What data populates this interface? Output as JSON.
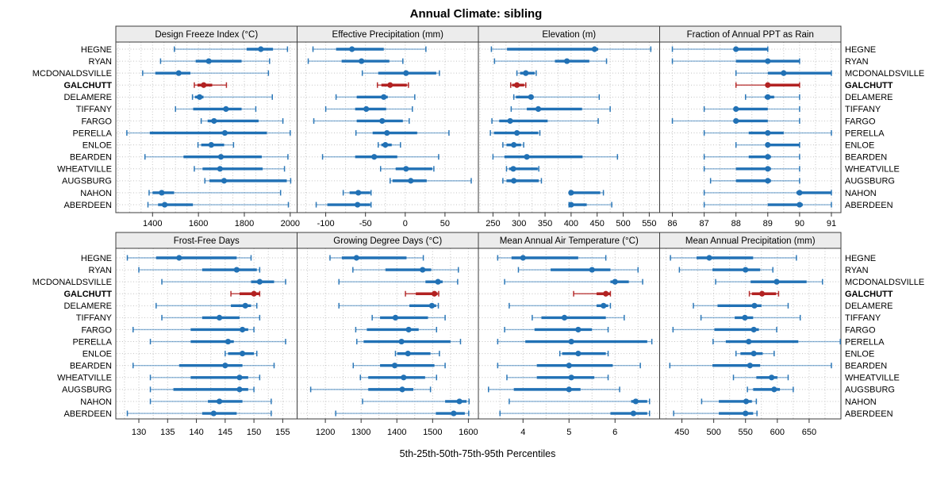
{
  "title": "Annual Climate: sibling",
  "caption": "5th-25th-50th-75th-95th Percentiles",
  "highlight_station": "GALCHUTT",
  "stations": [
    "HEGNE",
    "RYAN",
    "MCDONALDSVILLE",
    "GALCHUTT",
    "DELAMERE",
    "TIFFANY",
    "FARGO",
    "PERELLA",
    "ENLOE",
    "BEARDEN",
    "WHEATVILLE",
    "AUGSBURG",
    "NAHON",
    "ABERDEEN"
  ],
  "colors": {
    "primary": "#2171b5",
    "highlight": "#b22222",
    "strip_bg": "#ececec",
    "panel_border": "#3c3c3c",
    "grid": "#c3c3c3",
    "tick": "#333333"
  },
  "chart_data": {
    "type": "scatter",
    "variant": "percentile-dot-whisker",
    "percentile_labels": [
      "p5",
      "p25",
      "p50",
      "p75",
      "p95"
    ],
    "legend_position": "none",
    "grid": "dotted",
    "xlabel": "5th-25th-50th-75th-95th Percentiles",
    "categories": [
      "HEGNE",
      "RYAN",
      "MCDONALDSVILLE",
      "GALCHUTT",
      "DELAMERE",
      "TIFFANY",
      "FARGO",
      "PERELLA",
      "ENLOE",
      "BEARDEN",
      "WHEATVILLE",
      "AUGSBURG",
      "NAHON",
      "ABERDEEN"
    ],
    "panels": [
      {
        "title": "Design Freeze Index (°C)",
        "xlim": [
          1240,
          2030
        ],
        "ticks": [
          1400,
          1600,
          1800,
          2000
        ],
        "minor_step": 50,
        "values": [
          [
            1495,
            1810,
            1872,
            1925,
            1988
          ],
          [
            1435,
            1588,
            1645,
            1788,
            1910
          ],
          [
            1357,
            1412,
            1514,
            1565,
            1905
          ],
          [
            1582,
            1596,
            1623,
            1660,
            1722
          ],
          [
            1574,
            1585,
            1605,
            1622,
            1922
          ],
          [
            1500,
            1577,
            1720,
            1788,
            1850
          ],
          [
            1612,
            1640,
            1668,
            1862,
            1968
          ],
          [
            1288,
            1388,
            1715,
            1898,
            2000
          ],
          [
            1598,
            1612,
            1656,
            1712,
            1753
          ],
          [
            1367,
            1535,
            1698,
            1876,
            1990
          ],
          [
            1582,
            1618,
            1694,
            1880,
            1975
          ],
          [
            1628,
            1648,
            1712,
            1985,
            2002
          ],
          [
            1385,
            1400,
            1440,
            1494,
            1958
          ],
          [
            1380,
            1424,
            1453,
            1576,
            1992
          ]
        ]
      },
      {
        "title": "Effective Precipitation (mm)",
        "xlim": [
          -136,
          92
        ],
        "ticks": [
          -100,
          -50,
          0,
          50
        ],
        "minor_step": 25,
        "values": [
          [
            -116,
            -87,
            -67,
            -27,
            26
          ],
          [
            -122,
            -80,
            -55,
            -20,
            -3
          ],
          [
            -54,
            -34,
            1,
            39,
            43
          ],
          [
            -35,
            -30,
            -19,
            2,
            4
          ],
          [
            -87,
            -61,
            -27,
            -22,
            12
          ],
          [
            -100,
            -63,
            -49,
            -24,
            9
          ],
          [
            -115,
            -61,
            -29,
            -3,
            5
          ],
          [
            -62,
            -41,
            -23,
            15,
            55
          ],
          [
            -34,
            -30,
            -25,
            -17,
            -6
          ],
          [
            -104,
            -63,
            -39,
            -10,
            42
          ],
          [
            -31,
            -12,
            1,
            34,
            36
          ],
          [
            -19,
            -16,
            7,
            27,
            83
          ],
          [
            -78,
            -70,
            -59,
            -44,
            -43
          ],
          [
            -112,
            -98,
            -60,
            -44,
            -43
          ]
        ]
      },
      {
        "title": "Elevation (m)",
        "xlim": [
          222,
          570
        ],
        "ticks": [
          250,
          300,
          350,
          400,
          450,
          500,
          550
        ],
        "minor_step": 25,
        "values": [
          [
            247,
            277,
            445,
            452,
            553
          ],
          [
            253,
            369,
            392,
            435,
            468
          ],
          [
            296,
            302,
            313,
            330,
            333
          ],
          [
            284,
            287,
            296,
            310,
            313
          ],
          [
            290,
            294,
            323,
            328,
            454
          ],
          [
            285,
            315,
            337,
            421,
            475
          ],
          [
            248,
            262,
            283,
            355,
            452
          ],
          [
            245,
            252,
            296,
            337,
            340
          ],
          [
            269,
            276,
            290,
            304,
            309
          ],
          [
            250,
            272,
            315,
            422,
            489
          ],
          [
            276,
            281,
            289,
            336,
            338
          ],
          [
            269,
            276,
            290,
            338,
            343
          ],
          [
            398,
            400,
            400,
            456,
            462
          ],
          [
            396,
            398,
            400,
            430,
            478
          ]
        ]
      },
      {
        "title": "Fraction of Annual PPT as Rain",
        "xlim": [
          85.6,
          91.3
        ],
        "ticks": [
          86,
          87,
          88,
          89,
          90,
          91
        ],
        "minor_step": 0.5,
        "values": [
          [
            86,
            88,
            88,
            89,
            89
          ],
          [
            86,
            88,
            89,
            90,
            90
          ],
          [
            88,
            89,
            89.5,
            91,
            91
          ],
          [
            88,
            89,
            89,
            90,
            90
          ],
          [
            88.3,
            88.9,
            89,
            89.2,
            90
          ],
          [
            87,
            88,
            88,
            89,
            90
          ],
          [
            86,
            88,
            88,
            89,
            90
          ],
          [
            87,
            88.4,
            89,
            89.5,
            91
          ],
          [
            88,
            89,
            89,
            90,
            90
          ],
          [
            87,
            88.4,
            89,
            89.1,
            90
          ],
          [
            87,
            88,
            89,
            89.1,
            90
          ],
          [
            87.2,
            88,
            89,
            89.1,
            90
          ],
          [
            87,
            89.9,
            90,
            91,
            91
          ],
          [
            87,
            89,
            90,
            90.1,
            91
          ]
        ]
      },
      {
        "title": "Frost-Free Days",
        "xlim": [
          126,
          157.5
        ],
        "ticks": [
          130,
          135,
          140,
          145,
          150,
          155
        ],
        "minor_step": 2.5,
        "values": [
          [
            128,
            133,
            137,
            147,
            149.5
          ],
          [
            130,
            141,
            147,
            150.5,
            151
          ],
          [
            134,
            149.5,
            151,
            153.5,
            155.5
          ],
          [
            146,
            147.5,
            150,
            151,
            151
          ],
          [
            133,
            146,
            148.5,
            149.5,
            150.5
          ],
          [
            134,
            141,
            144,
            147.5,
            151
          ],
          [
            129,
            139,
            148,
            149,
            150
          ],
          [
            132,
            139,
            145.5,
            146.5,
            155.5
          ],
          [
            145,
            145.5,
            148,
            150,
            150.5
          ],
          [
            129,
            137,
            145,
            148,
            153.5
          ],
          [
            132,
            139,
            147.5,
            149,
            151
          ],
          [
            132,
            136,
            147.5,
            149,
            150
          ],
          [
            132,
            142,
            144,
            148,
            153
          ],
          [
            128,
            141,
            143,
            147,
            153
          ]
        ]
      },
      {
        "title": "Growing Degree Days (°C)",
        "xlim": [
          1121,
          1628
        ],
        "ticks": [
          1200,
          1300,
          1400,
          1500,
          1600
        ],
        "minor_step": 50,
        "values": [
          [
            1213,
            1246,
            1287,
            1427,
            1474
          ],
          [
            1277,
            1368,
            1472,
            1496,
            1572
          ],
          [
            1238,
            1480,
            1515,
            1528,
            1570
          ],
          [
            1424,
            1453,
            1505,
            1514,
            1517
          ],
          [
            1238,
            1435,
            1498,
            1510,
            1516
          ],
          [
            1331,
            1353,
            1396,
            1487,
            1535
          ],
          [
            1285,
            1316,
            1433,
            1461,
            1511
          ],
          [
            1288,
            1307,
            1413,
            1550,
            1578
          ],
          [
            1396,
            1401,
            1431,
            1494,
            1519
          ],
          [
            1278,
            1353,
            1394,
            1505,
            1535
          ],
          [
            1298,
            1320,
            1419,
            1479,
            1511
          ],
          [
            1159,
            1320,
            1415,
            1446,
            1494
          ],
          [
            1304,
            1535,
            1575,
            1595,
            1602
          ],
          [
            1229,
            1509,
            1559,
            1590,
            1601
          ]
        ]
      },
      {
        "title": "Mean Annual Air Temperature (°C)",
        "xlim": [
          3.03,
          6.97
        ],
        "ticks": [
          4,
          5,
          6
        ],
        "minor_step": 0.5,
        "values": [
          [
            3.45,
            3.75,
            4.0,
            5.2,
            5.8
          ],
          [
            3.9,
            4.6,
            5.5,
            5.9,
            6.5
          ],
          [
            3.6,
            5.9,
            6.0,
            6.3,
            6.6
          ],
          [
            5.1,
            5.6,
            5.8,
            5.9,
            5.9
          ],
          [
            3.7,
            5.6,
            5.75,
            5.85,
            5.9
          ],
          [
            4.2,
            4.4,
            4.9,
            5.8,
            6.2
          ],
          [
            3.6,
            4.25,
            5.2,
            5.5,
            5.85
          ],
          [
            3.45,
            4.05,
            5.05,
            6.7,
            6.8
          ],
          [
            4.8,
            4.85,
            5.2,
            5.8,
            5.85
          ],
          [
            3.45,
            4.3,
            5.0,
            5.95,
            6.55
          ],
          [
            3.65,
            4.3,
            5.05,
            5.55,
            5.85
          ],
          [
            3.25,
            3.8,
            5.0,
            5.25,
            6.1
          ],
          [
            3.7,
            6.35,
            6.45,
            6.7,
            6.75
          ],
          [
            3.5,
            5.9,
            6.4,
            6.7,
            6.75
          ]
        ]
      },
      {
        "title": "Mean Annual Precipitation (mm)",
        "xlim": [
          415,
          700
        ],
        "ticks": [
          450,
          500,
          550,
          600,
          650
        ],
        "minor_step": 25,
        "values": [
          [
            432,
            473,
            493,
            562,
            630
          ],
          [
            446,
            498,
            550,
            573,
            593
          ],
          [
            503,
            558,
            599,
            646,
            671
          ],
          [
            556,
            560,
            576,
            598,
            602
          ],
          [
            468,
            506,
            564,
            575,
            617
          ],
          [
            480,
            533,
            549,
            562,
            636
          ],
          [
            436,
            501,
            563,
            571,
            599
          ],
          [
            499,
            519,
            555,
            633,
            699
          ],
          [
            535,
            542,
            563,
            577,
            595
          ],
          [
            431,
            498,
            557,
            573,
            685
          ],
          [
            531,
            567,
            591,
            600,
            617
          ],
          [
            553,
            562,
            595,
            604,
            625
          ],
          [
            481,
            508,
            551,
            560,
            567
          ],
          [
            437,
            508,
            550,
            562,
            568
          ]
        ]
      }
    ]
  }
}
